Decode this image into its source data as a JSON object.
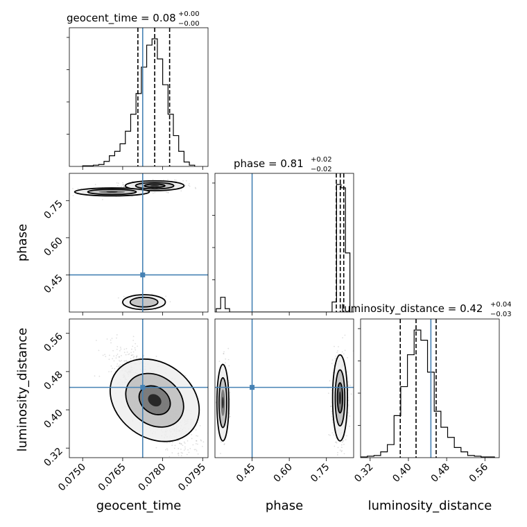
{
  "chart_data": {
    "type": "corner",
    "parameters": [
      "geocent_time",
      "phase",
      "luminosity_distance"
    ],
    "truth": {
      "geocent_time": 0.07725,
      "phase": 0.45,
      "luminosity_distance": 0.447
    },
    "titles": [
      {
        "name": "geocent_time",
        "value": "0.08",
        "plus": "+0.00",
        "minus": "−0.00"
      },
      {
        "name": "phase",
        "value": "0.81",
        "plus": "+0.02",
        "minus": "−0.02"
      },
      {
        "name": "luminosity_distance",
        "value": "0.42",
        "plus": "+0.04",
        "minus": "−0.03"
      }
    ],
    "axis_ticks": {
      "geocent_time": [
        "0.0750",
        "0.0765",
        "0.0780",
        "0.0795"
      ],
      "phase": [
        "0.45",
        "0.60",
        "0.75"
      ],
      "luminosity_distance": [
        "0.32",
        "0.40",
        "0.48",
        "0.56"
      ]
    },
    "axis_ranges": {
      "geocent_time": [
        0.0745,
        0.0797
      ],
      "phase": [
        0.3,
        0.86
      ],
      "luminosity_distance": [
        0.3,
        0.59
      ]
    },
    "quantiles": {
      "geocent_time": [
        0.07707,
        0.0777,
        0.07826
      ],
      "phase": [
        0.79,
        0.806,
        0.82
      ],
      "luminosity_distance": [
        0.383,
        0.416,
        0.458
      ]
    },
    "marginals": {
      "geocent_time": {
        "edges": [
          0.075,
          0.0752,
          0.0754,
          0.0756,
          0.0758,
          0.076,
          0.0762,
          0.0764,
          0.0766,
          0.0768,
          0.077,
          0.0772,
          0.0774,
          0.0776,
          0.0778,
          0.078,
          0.0782,
          0.0784,
          0.0786,
          0.0788,
          0.079,
          0.0792
        ],
        "counts": [
          1,
          1,
          2,
          3,
          8,
          17,
          24,
          36,
          56,
          83,
          116,
          158,
          193,
          203,
          171,
          130,
          83,
          49,
          24,
          7,
          2
        ]
      },
      "phase": {
        "edges": [
          0.305,
          0.323,
          0.341,
          0.359,
          0.377,
          0.395,
          0.413,
          0.431,
          0.449,
          0.467,
          0.485,
          0.503,
          0.521,
          0.539,
          0.557,
          0.575,
          0.593,
          0.611,
          0.629,
          0.647,
          0.665,
          0.683,
          0.701,
          0.719,
          0.737,
          0.755,
          0.773,
          0.791,
          0.809,
          0.827,
          0.845
        ],
        "counts": [
          5,
          22,
          5,
          0,
          0,
          0,
          0,
          0,
          0,
          0,
          0,
          0,
          0,
          0,
          0,
          0,
          0,
          0,
          0,
          0,
          0,
          0,
          0,
          0,
          0,
          0,
          15,
          190,
          185,
          88
        ]
      },
      "luminosity_distance": {
        "edges": [
          0.3,
          0.314,
          0.328,
          0.342,
          0.356,
          0.37,
          0.384,
          0.398,
          0.412,
          0.426,
          0.44,
          0.454,
          0.468,
          0.482,
          0.496,
          0.51,
          0.524,
          0.538,
          0.552,
          0.566,
          0.58
        ],
        "counts": [
          1,
          2,
          3,
          8,
          18,
          58,
          98,
          142,
          176,
          162,
          118,
          64,
          42,
          28,
          14,
          8,
          3,
          2,
          1,
          1
        ]
      }
    },
    "clouds": [
      {
        "x": "geocent_time",
        "y": "phase",
        "blobs": [
          {
            "cx": 0.0777,
            "cy": 0.81,
            "sx": 0.00055,
            "sy": 0.01,
            "n": 520
          },
          {
            "cx": 0.0761,
            "cy": 0.785,
            "sx": 0.0007,
            "sy": 0.008,
            "n": 130
          },
          {
            "cx": 0.0773,
            "cy": 0.34,
            "sx": 0.0004,
            "sy": 0.015,
            "n": 90
          }
        ]
      },
      {
        "x": "geocent_time",
        "y": "luminosity_distance",
        "blobs": [
          {
            "cx": 0.0777,
            "cy": 0.42,
            "sx": 0.0007,
            "sy": 0.05,
            "rho": -0.75,
            "n": 1300
          }
        ]
      },
      {
        "x": "phase",
        "y": "luminosity_distance",
        "blobs": [
          {
            "cx": 0.805,
            "cy": 0.425,
            "sx": 0.015,
            "sy": 0.045,
            "n": 600
          },
          {
            "cx": 0.332,
            "cy": 0.415,
            "sx": 0.012,
            "sy": 0.04,
            "n": 210
          }
        ]
      }
    ],
    "grid": true,
    "colors": {
      "truth": "#4682b4",
      "ink": "#000000",
      "grid": "#b0b0b0"
    }
  }
}
